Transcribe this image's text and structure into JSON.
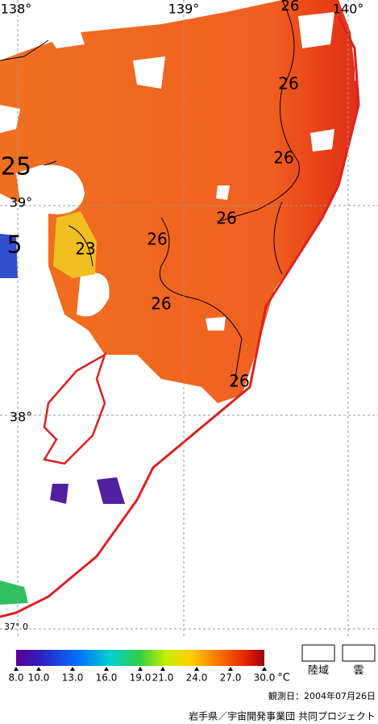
{
  "map": {
    "grid_labels": [
      "138°",
      "139°",
      "140°",
      "39°",
      "38°",
      "37° 0"
    ],
    "contour_labels": [
      "26",
      "26",
      "26",
      "26",
      "26",
      "26",
      "26",
      "25",
      "23",
      "5"
    ]
  },
  "colorbar": {
    "lim": [
      8,
      30
    ],
    "ticks": [
      {
        "value": 8,
        "label": "8.0"
      },
      {
        "value": 10,
        "label": "10.0"
      },
      {
        "value": 13,
        "label": "13.0"
      },
      {
        "value": 16,
        "label": "16.0"
      },
      {
        "value": 19,
        "label": "19.0"
      },
      {
        "value": 21,
        "label": "21.0"
      },
      {
        "value": 24,
        "label": "24.0"
      },
      {
        "value": 27,
        "label": "27.0"
      },
      {
        "value": 30,
        "label": "30.0"
      }
    ],
    "unit": "°C"
  },
  "legend": {
    "items": [
      "陸域",
      "雲"
    ]
  },
  "footer": {
    "date": "観測日：2004年07月26日",
    "credit": "岩手県／宇宙開発事業団 共同プロジェクト"
  }
}
